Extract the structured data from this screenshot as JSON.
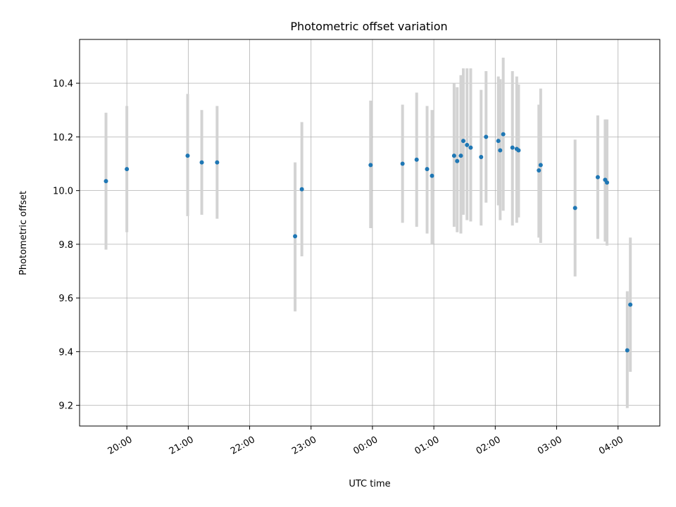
{
  "chart_data": {
    "type": "scatter",
    "title": "Photometric offset variation",
    "xlabel": "UTC time",
    "ylabel": "Photometric offset",
    "x_ticks": [
      {
        "t": 0,
        "label": "20:00"
      },
      {
        "t": 1,
        "label": "21:00"
      },
      {
        "t": 2,
        "label": "22:00"
      },
      {
        "t": 3,
        "label": "23:00"
      },
      {
        "t": 4,
        "label": "00:00"
      },
      {
        "t": 5,
        "label": "01:00"
      },
      {
        "t": 6,
        "label": "02:00"
      },
      {
        "t": 7,
        "label": "03:00"
      },
      {
        "t": 8,
        "label": "04:00"
      }
    ],
    "y_ticks": [
      9.2,
      9.4,
      9.6,
      9.8,
      10.0,
      10.2,
      10.4
    ],
    "xlim": [
      -0.77,
      8.68
    ],
    "ylim": [
      9.123,
      10.563
    ],
    "grid": true,
    "marker_color": "#1f77b4",
    "errorbar_color": "#d3d3d3",
    "points": [
      {
        "t": -0.34,
        "y": 10.035,
        "lo": 9.78,
        "hi": 10.29
      },
      {
        "t": 0.0,
        "y": 10.08,
        "lo": 9.845,
        "hi": 10.315
      },
      {
        "t": 0.99,
        "y": 10.13,
        "lo": 9.905,
        "hi": 10.36
      },
      {
        "t": 1.22,
        "y": 10.105,
        "lo": 9.91,
        "hi": 10.3
      },
      {
        "t": 1.47,
        "y": 10.105,
        "lo": 9.895,
        "hi": 10.315
      },
      {
        "t": 2.74,
        "y": 9.83,
        "lo": 9.55,
        "hi": 10.105
      },
      {
        "t": 2.85,
        "y": 10.005,
        "lo": 9.755,
        "hi": 10.255
      },
      {
        "t": 3.97,
        "y": 10.095,
        "lo": 9.86,
        "hi": 10.335
      },
      {
        "t": 4.49,
        "y": 10.1,
        "lo": 9.88,
        "hi": 10.32
      },
      {
        "t": 4.72,
        "y": 10.115,
        "lo": 9.865,
        "hi": 10.365
      },
      {
        "t": 4.89,
        "y": 10.08,
        "lo": 9.84,
        "hi": 10.315
      },
      {
        "t": 4.97,
        "y": 10.055,
        "lo": 9.8,
        "hi": 10.3
      },
      {
        "t": 5.33,
        "y": 10.13,
        "lo": 9.865,
        "hi": 10.4
      },
      {
        "t": 5.38,
        "y": 10.11,
        "lo": 9.845,
        "hi": 10.385
      },
      {
        "t": 5.44,
        "y": 10.13,
        "lo": 9.84,
        "hi": 10.43
      },
      {
        "t": 5.48,
        "y": 10.185,
        "lo": 9.91,
        "hi": 10.455
      },
      {
        "t": 5.54,
        "y": 10.17,
        "lo": 9.89,
        "hi": 10.455
      },
      {
        "t": 5.6,
        "y": 10.16,
        "lo": 9.885,
        "hi": 10.455
      },
      {
        "t": 5.77,
        "y": 10.125,
        "lo": 9.87,
        "hi": 10.375
      },
      {
        "t": 5.85,
        "y": 10.2,
        "lo": 9.955,
        "hi": 10.445
      },
      {
        "t": 6.05,
        "y": 10.185,
        "lo": 9.945,
        "hi": 10.425
      },
      {
        "t": 6.08,
        "y": 10.15,
        "lo": 9.89,
        "hi": 10.415
      },
      {
        "t": 6.13,
        "y": 10.21,
        "lo": 9.925,
        "hi": 10.495
      },
      {
        "t": 6.28,
        "y": 10.16,
        "lo": 9.87,
        "hi": 10.445
      },
      {
        "t": 6.35,
        "y": 10.155,
        "lo": 9.88,
        "hi": 10.425
      },
      {
        "t": 6.38,
        "y": 10.15,
        "lo": 9.9,
        "hi": 10.395
      },
      {
        "t": 6.71,
        "y": 10.075,
        "lo": 9.825,
        "hi": 10.32
      },
      {
        "t": 6.74,
        "y": 10.095,
        "lo": 9.805,
        "hi": 10.38
      },
      {
        "t": 7.3,
        "y": 9.935,
        "lo": 9.68,
        "hi": 10.19
      },
      {
        "t": 7.67,
        "y": 10.05,
        "lo": 9.82,
        "hi": 10.28
      },
      {
        "t": 7.79,
        "y": 10.04,
        "lo": 9.81,
        "hi": 10.265
      },
      {
        "t": 7.82,
        "y": 10.03,
        "lo": 9.795,
        "hi": 10.265
      },
      {
        "t": 8.15,
        "y": 9.405,
        "lo": 9.19,
        "hi": 9.625
      },
      {
        "t": 8.2,
        "y": 9.575,
        "lo": 9.325,
        "hi": 9.825
      }
    ]
  }
}
